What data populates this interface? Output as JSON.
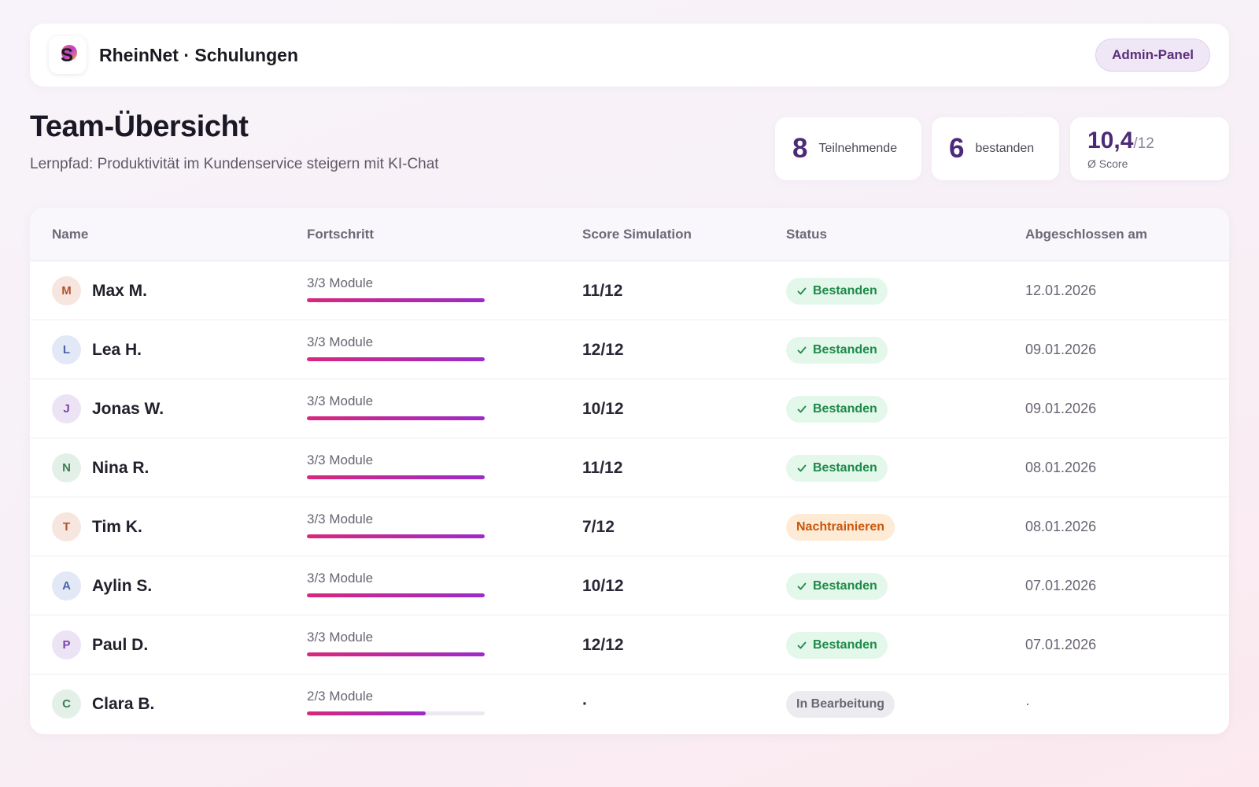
{
  "app": {
    "title": "RheinNet · Schulungen",
    "logo_letter": "S",
    "admin_button": "Admin-Panel"
  },
  "page": {
    "title": "Team-Übersicht",
    "subtitle": "Lernpfad: Produktivität im Kundenservice steigern mit KI-Chat"
  },
  "stats": {
    "participants": {
      "value": "8",
      "label": "Teilnehmende"
    },
    "passed": {
      "value": "6",
      "label": "bestanden"
    },
    "avg_score": {
      "value": "10,4",
      "denominator": "/12",
      "label": "Ø Score"
    }
  },
  "table": {
    "headers": {
      "name": "Name",
      "progress": "Fortschritt",
      "score": "Score Simulation",
      "status": "Status",
      "completed": "Abgeschlossen am"
    },
    "rows": [
      {
        "initial": "M",
        "name": "Max M.",
        "progress": "3/3 Module",
        "progress_fraction": 1.0,
        "score": "11/12",
        "status": "Bestanden",
        "status_kind": "ok",
        "date": "12.01.2026",
        "avatar_bg": "#f7e6df",
        "avatar_fg": "#b2542d"
      },
      {
        "initial": "L",
        "name": "Lea H.",
        "progress": "3/3 Module",
        "progress_fraction": 1.0,
        "score": "12/12",
        "status": "Bestanden",
        "status_kind": "ok",
        "date": "09.01.2026",
        "avatar_bg": "#e3e8f6",
        "avatar_fg": "#4d63a8"
      },
      {
        "initial": "J",
        "name": "Jonas W.",
        "progress": "3/3 Module",
        "progress_fraction": 1.0,
        "score": "10/12",
        "status": "Bestanden",
        "status_kind": "ok",
        "date": "09.01.2026",
        "avatar_bg": "#ece3f4",
        "avatar_fg": "#7b45a8"
      },
      {
        "initial": "N",
        "name": "Nina R.",
        "progress": "3/3 Module",
        "progress_fraction": 1.0,
        "score": "11/12",
        "status": "Bestanden",
        "status_kind": "ok",
        "date": "08.01.2026",
        "avatar_bg": "#e3f0e7",
        "avatar_fg": "#3f7e57"
      },
      {
        "initial": "T",
        "name": "Tim K.",
        "progress": "3/3 Module",
        "progress_fraction": 1.0,
        "score": "7/12",
        "status": "Nachtrainieren",
        "status_kind": "warn",
        "date": "08.01.2026",
        "avatar_bg": "#f7e6df",
        "avatar_fg": "#b2542d"
      },
      {
        "initial": "A",
        "name": "Aylin S.",
        "progress": "3/3 Module",
        "progress_fraction": 1.0,
        "score": "10/12",
        "status": "Bestanden",
        "status_kind": "ok",
        "date": "07.01.2026",
        "avatar_bg": "#e3e8f6",
        "avatar_fg": "#4d63a8"
      },
      {
        "initial": "P",
        "name": "Paul D.",
        "progress": "3/3 Module",
        "progress_fraction": 1.0,
        "score": "12/12",
        "status": "Bestanden",
        "status_kind": "ok",
        "date": "07.01.2026",
        "avatar_bg": "#ece3f4",
        "avatar_fg": "#7b45a8"
      },
      {
        "initial": "C",
        "name": "Clara B.",
        "progress": "2/3 Module",
        "progress_fraction": 0.667,
        "score": "·",
        "status": "In Bearbeitung",
        "status_kind": "progress",
        "date": "·",
        "avatar_bg": "#e3f0e7",
        "avatar_fg": "#3f7e57"
      }
    ]
  },
  "colors": {
    "accent": "#4d2a78",
    "progress_start": "#d9277c",
    "progress_end": "#9b2bc9",
    "ok": "#1e8a49",
    "warn": "#c8560d"
  }
}
